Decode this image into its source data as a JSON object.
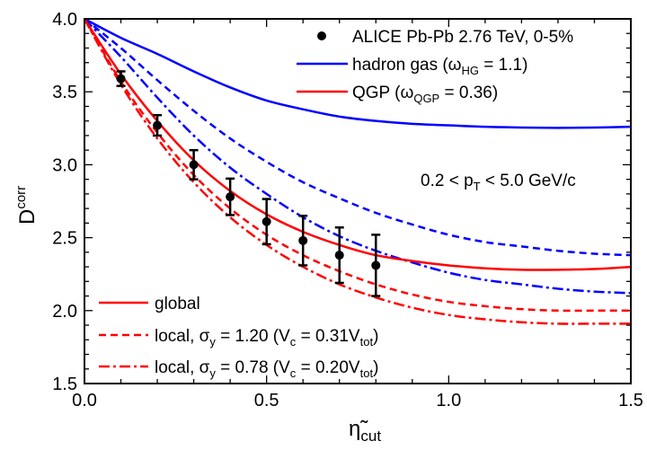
{
  "chart_data": {
    "type": "line",
    "title": "",
    "xlabel": {
      "main": "η̃",
      "sub": "cut"
    },
    "ylabel": {
      "main": "D",
      "sup": "corr"
    },
    "xlim": [
      0,
      1.5
    ],
    "ylim": [
      1.5,
      4.0
    ],
    "xticks": [
      "0.0",
      "0.5",
      "1.0",
      "1.5"
    ],
    "xtick_values": [
      0,
      0.5,
      1.0,
      1.5
    ],
    "yticks": [
      "1.5",
      "2.0",
      "2.5",
      "3.0",
      "3.5",
      "4.0"
    ],
    "ytick_values": [
      1.5,
      2.0,
      2.5,
      3.0,
      3.5,
      4.0
    ],
    "grid": false,
    "x": [
      0,
      0.1,
      0.2,
      0.3,
      0.4,
      0.5,
      0.6,
      0.7,
      0.8,
      0.9,
      1.0,
      1.1,
      1.2,
      1.3,
      1.4,
      1.5
    ],
    "series": [
      {
        "name": "hadron gas global",
        "color": "#0000ff",
        "style": "solid",
        "values": [
          4.0,
          3.87,
          3.76,
          3.64,
          3.53,
          3.44,
          3.38,
          3.33,
          3.3,
          3.28,
          3.27,
          3.26,
          3.255,
          3.253,
          3.255,
          3.26
        ]
      },
      {
        "name": "hadron gas local sigma 1.20",
        "color": "#0000ff",
        "style": "dashed",
        "values": [
          4.0,
          3.8,
          3.58,
          3.37,
          3.18,
          3.02,
          2.88,
          2.77,
          2.67,
          2.59,
          2.52,
          2.47,
          2.44,
          2.41,
          2.39,
          2.38
        ]
      },
      {
        "name": "hadron gas local sigma 0.78",
        "color": "#0000ff",
        "style": "dashdot",
        "values": [
          4.0,
          3.74,
          3.46,
          3.2,
          2.98,
          2.8,
          2.64,
          2.51,
          2.41,
          2.33,
          2.26,
          2.21,
          2.18,
          2.15,
          2.13,
          2.12
        ]
      },
      {
        "name": "QGP global",
        "color": "#ff0000",
        "style": "solid",
        "values": [
          4.0,
          3.62,
          3.3,
          3.03,
          2.82,
          2.66,
          2.54,
          2.45,
          2.38,
          2.34,
          2.31,
          2.29,
          2.28,
          2.28,
          2.285,
          2.3
        ]
      },
      {
        "name": "QGP local sigma 1.20",
        "color": "#ff0000",
        "style": "dashed",
        "values": [
          4.0,
          3.57,
          3.22,
          2.93,
          2.7,
          2.52,
          2.38,
          2.27,
          2.18,
          2.11,
          2.06,
          2.03,
          2.01,
          2.0,
          2.0,
          2.0
        ]
      },
      {
        "name": "QGP local sigma 0.78",
        "color": "#ff0000",
        "style": "dashdot",
        "values": [
          4.0,
          3.55,
          3.18,
          2.88,
          2.64,
          2.45,
          2.3,
          2.18,
          2.09,
          2.02,
          1.97,
          1.94,
          1.92,
          1.91,
          1.91,
          1.91
        ]
      }
    ],
    "data_points": {
      "name": "ALICE Pb-Pb 2.76 TeV, 0-5%",
      "x": [
        0.1,
        0.2,
        0.3,
        0.4,
        0.5,
        0.6,
        0.7,
        0.8
      ],
      "y": [
        3.59,
        3.27,
        3.0,
        2.78,
        2.61,
        2.48,
        2.38,
        2.31
      ],
      "err": [
        0.05,
        0.07,
        0.1,
        0.125,
        0.155,
        0.17,
        0.19,
        0.21
      ]
    },
    "legend_top": [
      {
        "text": "ALICE Pb-Pb 2.76 TeV, 0-5%"
      },
      {
        "text": "hadron gas (ω",
        "sub": "HG",
        "tail": " = 1.1)",
        "color": "#0000ff"
      },
      {
        "text": "QGP (ω",
        "sub": "QGP",
        "tail": " = 0.36)",
        "color": "#ff0000"
      }
    ],
    "annotation": {
      "pre": "0.2 < p",
      "sub": "T",
      "tail": " < 5.0 GeV/c"
    },
    "legend_bottom": [
      {
        "text": "global"
      },
      {
        "text": "local, σ",
        "sub1": "y",
        "mid": " = 1.20 (V",
        "sub2": "c",
        "mid2": " = 0.31V",
        "sub3": "tot",
        "tail": ")"
      },
      {
        "text": "local, σ",
        "sub1": "y",
        "mid": " = 0.78 (V",
        "sub2": "c",
        "mid2": " = 0.20V",
        "sub3": "tot",
        "tail": ")"
      }
    ]
  }
}
